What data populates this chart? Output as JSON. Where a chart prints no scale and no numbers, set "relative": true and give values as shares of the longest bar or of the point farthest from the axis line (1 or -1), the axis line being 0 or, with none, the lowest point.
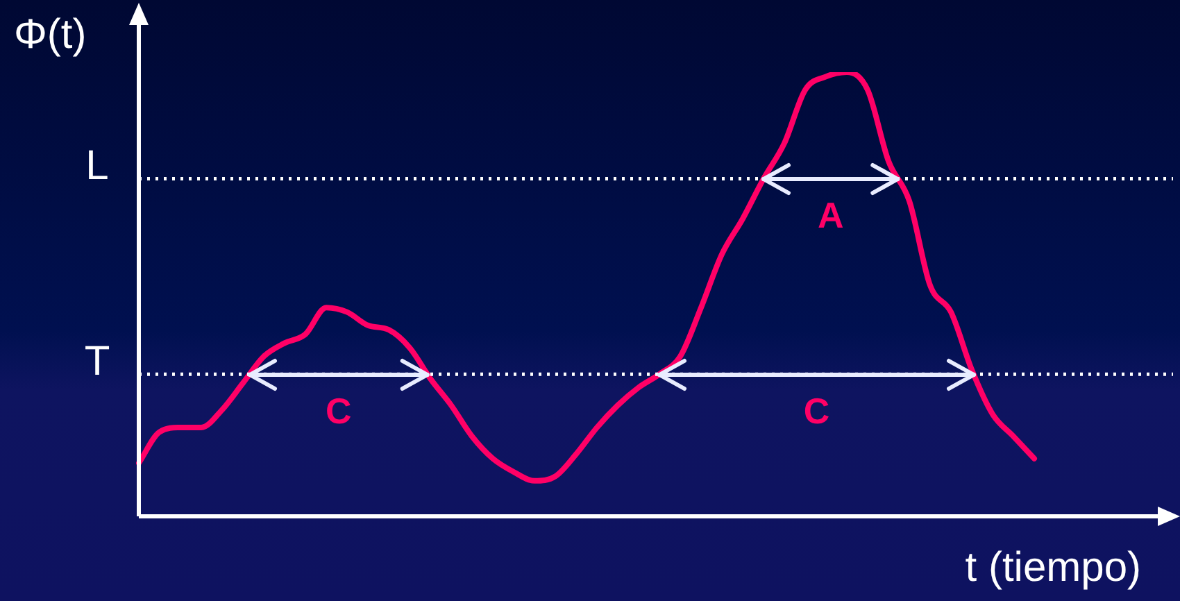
{
  "chart_data": {
    "type": "line",
    "relative": true,
    "xlabel": "t (tiempo)",
    "ylabel": "Φ(t)",
    "categories": [
      null,
      null,
      null,
      null,
      null,
      null,
      null,
      null,
      null,
      null,
      null,
      null,
      null,
      null,
      null,
      null,
      null,
      null,
      null,
      null,
      null,
      null,
      null,
      null,
      null,
      null,
      null,
      null,
      null,
      null,
      null,
      null,
      null,
      null,
      null,
      null,
      null,
      null,
      null,
      null,
      null,
      null,
      null,
      null,
      null,
      null,
      null,
      null,
      null,
      null
    ],
    "series": [
      {
        "color": "#ff0066",
        "values": [
          0.12,
          0.19,
          0.2,
          0.2,
          0.24,
          0.3,
          0.36,
          0.39,
          0.41,
          0.47,
          0.46,
          0.43,
          0.42,
          0.38,
          0.31,
          0.25,
          0.18,
          0.13,
          0.1,
          0.08,
          0.09,
          0.14,
          0.2,
          0.25,
          0.29,
          0.32,
          0.36,
          0.47,
          0.59,
          0.67,
          0.76,
          0.84,
          0.96,
          0.99,
          1,
          0.96,
          0.8,
          0.71,
          0.52,
          0.46,
          0.33,
          0.23,
          0.18,
          0.13,
          null,
          null,
          null,
          null,
          null,
          null
        ]
      }
    ],
    "ref_lines": [
      {
        "axis": "y",
        "value": 0.76,
        "label": "L",
        "color": "#ffffff",
        "line_style": "dotted"
      },
      {
        "axis": "y",
        "value": 0.32,
        "label": "T",
        "color": "#ffffff",
        "line_style": "dotted"
      }
    ],
    "annotations": [
      "A",
      "C",
      "C"
    ],
    "grid": false,
    "legend": false,
    "marker": "none",
    "line_style": "solid"
  }
}
